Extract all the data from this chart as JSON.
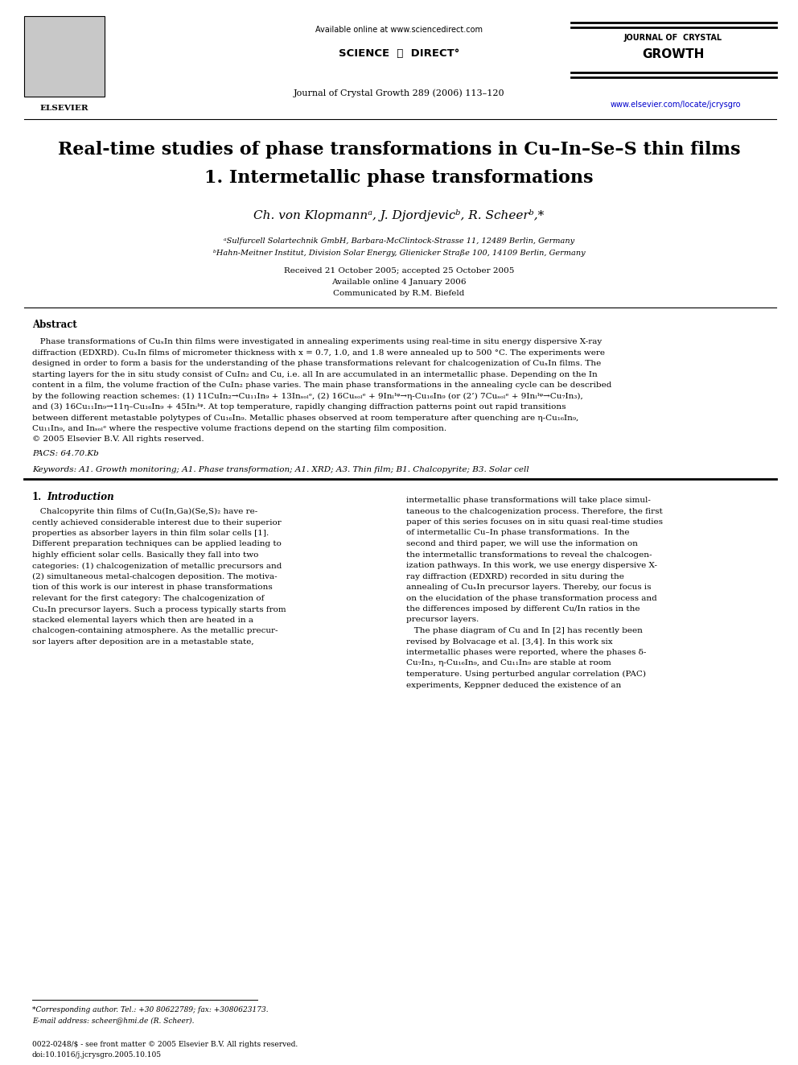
{
  "bg_color": "#ffffff",
  "page_width": 9.92,
  "page_height": 13.23,
  "dpi": 100,
  "header": {
    "available_online": "Available online at www.sciencedirect.com",
    "sciencedirect": "SCIENCE  ⓓ  DIRECT°",
    "journal_name_sm": "JOURNAL OF",
    "journal_name_lg1": "CRYSTAL",
    "journal_name_lg2": "GROWTH",
    "journal_ref": "Journal of Crystal Growth 289 (2006) 113–120",
    "url": "www.elsevier.com/locate/jcrysgro",
    "elsevier_text": "ELSEVIER"
  },
  "title_line1": "Real-time studies of phase transformations in Cu–In–Se–S thin films",
  "title_line2": "1. Intermetallic phase transformations",
  "authors": "Ch. von Klopmannᵃ, J. Djordjevicᵇ, R. Scheerᵇ,*",
  "affil1": "ᵃSulfurcell Solartechnik GmbH, Barbara-McClintock-Strasse 11, 12489 Berlin, Germany",
  "affil2": "ᵇHahn-Meitner Institut, Division Solar Energy, Glienicker Straße 100, 14109 Berlin, Germany",
  "received": "Received 21 October 2005; accepted 25 October 2005",
  "available": "Available online 4 January 2006",
  "communicated": "Communicated by R.M. Biefeld",
  "abstract_title": "Abstract",
  "pacs": "PACS: 64.70.Kb",
  "keywords": "Keywords: A1. Growth monitoring; A1. Phase transformation; A1. XRD; A3. Thin film; B1. Chalcopyrite; B3. Solar cell",
  "section1_num": "1.",
  "section1_name": "Introduction",
  "col1_lines": [
    "   Chalcopyrite thin films of Cu(In,Ga)(Se,S)₂ have re-",
    "cently achieved considerable interest due to their superior",
    "properties as absorber layers in thin film solar cells [1].",
    "Different preparation techniques can be applied leading to",
    "highly efficient solar cells. Basically they fall into two",
    "categories: (1) chalcogenization of metallic precursors and",
    "(2) simultaneous metal-chalcogen deposition. The motiva-",
    "tion of this work is our interest in phase transformations",
    "relevant for the first category: The chalcogenization of",
    "CuₓIn precursor layers. Such a process typically starts from",
    "stacked elemental layers which then are heated in a",
    "chalcogen-containing atmosphere. As the metallic precur-",
    "sor layers after deposition are in a metastable state,"
  ],
  "col2_lines": [
    "intermetallic phase transformations will take place simul-",
    "taneous to the chalcogenization process. Therefore, the first",
    "paper of this series focuses on in situ quasi real-time studies",
    "of intermetallic Cu–In phase transformations.  In the",
    "second and third paper, we will use the information on",
    "the intermetallic transformations to reveal the chalcogen-",
    "ization pathways. In this work, we use energy dispersive X-",
    "ray diffraction (EDXRD) recorded in situ during the",
    "annealing of CuₓIn precursor layers. Thereby, our focus is",
    "on the elucidation of the phase transformation process and",
    "the differences imposed by different Cu/In ratios in the",
    "precursor layers.",
    "   The phase diagram of Cu and In [2] has recently been",
    "revised by Bolvacage et al. [3,4]. In this work six",
    "intermetallic phases were reported, where the phases δ-",
    "Cu₇In₃, η-Cu₁₆In₉, and Cu₁₁In₉ are stable at room",
    "temperature. Using perturbed angular correlation (PAC)",
    "experiments, Keppner deduced the existence of an"
  ],
  "abstract_lines": [
    "   Phase transformations of CuₓIn thin films were investigated in annealing experiments using real-time in situ energy dispersive X-ray",
    "diffraction (EDXRD). CuₓIn films of micrometer thickness with x = 0.7, 1.0, and 1.8 were annealed up to 500 °C. The experiments were",
    "designed in order to form a basis for the understanding of the phase transformations relevant for chalcogenization of CuₓIn films. The",
    "starting layers for the in situ study consist of CuIn₂ and Cu, i.e. all In are accumulated in an intermetallic phase. Depending on the In",
    "content in a film, the volume fraction of the CuIn₂ phase varies. The main phase transformations in the annealing cycle can be described",
    "by the following reaction schemes: (1) 11CuIn₂→Cu₁₁In₉ + 13Inₛₒₗᵉ, (2) 16Cuₛₒₗᵉ + 9Inₗᴵᵠ→η-Cu₁₆In₉ (or (2’) 7Cuₛₒₗᵉ + 9Inₗᴵᵠ→Cu₇In₃),",
    "and (3) 16Cu₁₁In₉→11η–Cu₁₆In₉ + 45Inₗᴵᵠ. At top temperature, rapidly changing diffraction patterns point out rapid transitions",
    "between different metastable polytypes of Cu₁₆In₉. Metallic phases observed at room temperature after quenching are η-Cu₁₆In₉,",
    "Cu₁₁In₉, and Inₛₒₗᵉ where the respective volume fractions depend on the starting film composition.",
    "© 2005 Elsevier B.V. All rights reserved."
  ],
  "footnote1": "*Corresponding author. Tel.: +30 80622789; fax: +3080623173.",
  "footnote2": "E-mail address: scheer@hmi.de (R. Scheer).",
  "footer1": "0022-0248/$ - see front matter © 2005 Elsevier B.V. All rights reserved.",
  "footer2": "doi:10.1016/j.jcrysgro.2005.10.105"
}
